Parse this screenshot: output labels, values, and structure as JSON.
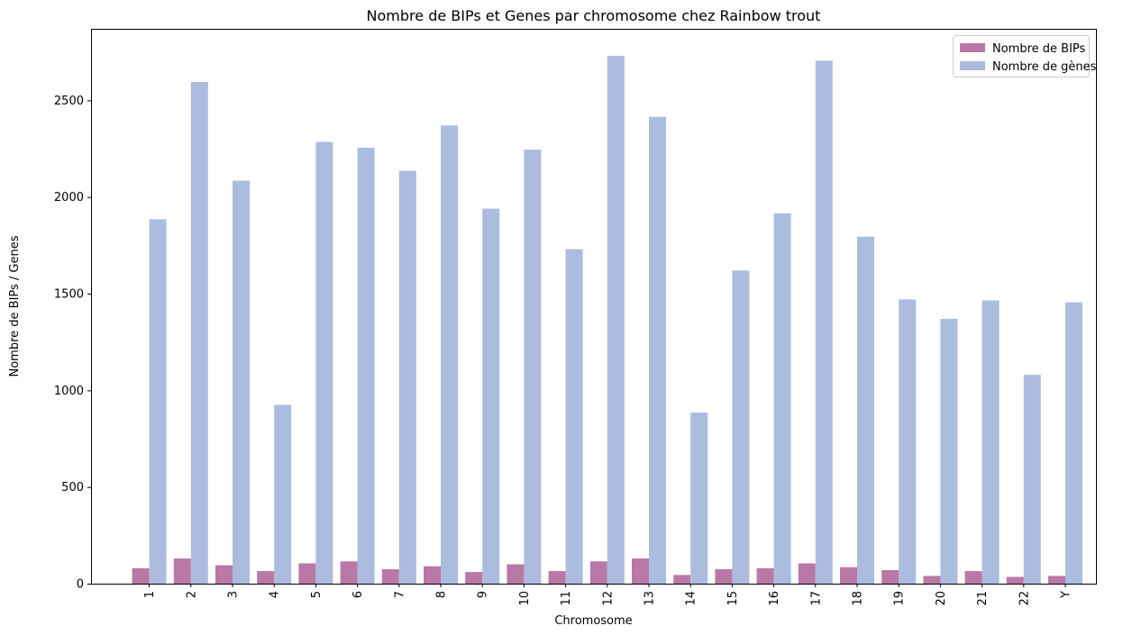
{
  "chart_data": {
    "type": "bar",
    "title": "Nombre de BIPs et Genes par chromosome chez Rainbow trout",
    "xlabel": "Chromosome",
    "ylabel": "Nombre de BIPs / Genes",
    "ylim": [
      0,
      2870
    ],
    "yticks": [
      0,
      500,
      1000,
      1500,
      2000,
      2500
    ],
    "grid": false,
    "legend_position": "top-right",
    "categories": [
      "1",
      "2",
      "3",
      "4",
      "5",
      "6",
      "7",
      "8",
      "9",
      "10",
      "11",
      "12",
      "13",
      "14",
      "15",
      "16",
      "17",
      "18",
      "19",
      "20",
      "21",
      "22",
      "Y"
    ],
    "series": [
      {
        "name": "Nombre de BIPs",
        "color": "#b978a5",
        "values": [
          80,
          130,
          95,
          65,
          105,
          115,
          75,
          90,
          60,
          100,
          65,
          115,
          130,
          45,
          75,
          80,
          105,
          85,
          70,
          40,
          65,
          35,
          40
        ]
      },
      {
        "name": "Nombre de gènes",
        "color": "#abbcdf",
        "values": [
          1885,
          2595,
          2085,
          925,
          2285,
          2255,
          2135,
          2370,
          1940,
          2245,
          1730,
          2730,
          2415,
          885,
          1620,
          1915,
          2705,
          1795,
          1470,
          1370,
          1465,
          1080,
          1455
        ]
      }
    ]
  }
}
